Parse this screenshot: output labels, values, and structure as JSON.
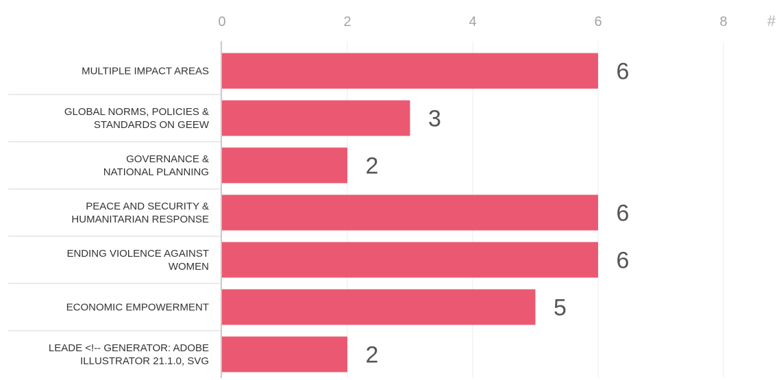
{
  "chart_data": {
    "type": "bar",
    "orientation": "horizontal",
    "categories": [
      [
        "MULTIPLE IMPACT AREAS"
      ],
      [
        "GLOBAL NORMS, POLICIES &",
        "STANDARDS ON GEEW"
      ],
      [
        "GOVERNANCE &",
        "NATIONAL PLANNING"
      ],
      [
        "PEACE AND SECURITY &",
        "HUMANITARIAN RESPONSE"
      ],
      [
        "ENDING VIOLENCE AGAINST",
        "WOMEN"
      ],
      [
        "ECONOMIC EMPOWERMENT"
      ],
      [
        "LEADE <!-- GENERATOR: ADOBE",
        "ILLUSTRATOR 21.1.0, SVG"
      ]
    ],
    "values": [
      6,
      3,
      2,
      6,
      6,
      5,
      2
    ],
    "value_labels": [
      "6",
      "3",
      "2",
      "6",
      "6",
      "5",
      "2"
    ],
    "x_ticks": [
      0,
      2,
      4,
      6,
      8
    ],
    "x_tick_labels": [
      "0",
      "2",
      "4",
      "6",
      "8"
    ],
    "x_unit_label": "#",
    "xlim": [
      0,
      8
    ],
    "grid": true,
    "axis_position": "top",
    "colors": {
      "bar": "#eb5872",
      "grid": "#ececec",
      "separator": "#d6d6d6",
      "baseline": "#c8c8c8"
    }
  }
}
